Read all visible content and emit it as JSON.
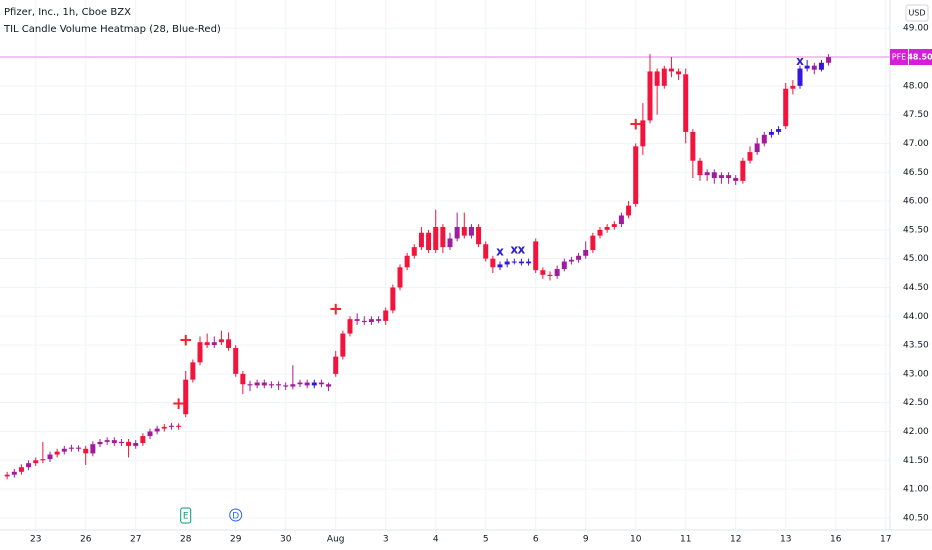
{
  "chart_data": {
    "type": "candlestick",
    "title": "Pfizer, Inc., 1h, Cboe BZX",
    "subtitle": "TIL Candle Volume Heatmap (28, Blue-Red)",
    "currency": "USD",
    "open": [
      41.22,
      41.25,
      41.3,
      41.38,
      41.45,
      41.5,
      41.52,
      41.6,
      41.65,
      41.7,
      41.72,
      41.7,
      41.62,
      41.78,
      41.82,
      41.85,
      41.8,
      41.82,
      41.75,
      41.8,
      41.92,
      42.0,
      42.05,
      42.08,
      42.1,
      42.3,
      42.9,
      43.2,
      43.55,
      43.5,
      43.55,
      43.6,
      43.45,
      43.0,
      42.82,
      42.8,
      42.85,
      42.8,
      42.82,
      42.8,
      42.78,
      42.82,
      42.85,
      42.8,
      42.85,
      42.82,
      43.0,
      43.3,
      43.7,
      43.95,
      43.92,
      43.9,
      43.95,
      43.92,
      44.1,
      44.5,
      44.85,
      45.05,
      45.2,
      45.45,
      45.15,
      45.55,
      45.2,
      45.35,
      45.55,
      45.4,
      45.55,
      45.25,
      45.0,
      44.85,
      44.9,
      44.95,
      44.95,
      44.92,
      45.3,
      44.8,
      44.72,
      44.7,
      44.82,
      44.95,
      44.98,
      45.05,
      45.15,
      45.4,
      45.5,
      45.55,
      45.6,
      45.75,
      45.95,
      46.95,
      47.4,
      48.25,
      48.0,
      48.3,
      48.25,
      48.2,
      47.2,
      46.7,
      46.45,
      46.5,
      46.4,
      46.45,
      46.4,
      46.35,
      46.7,
      46.85,
      47.0,
      47.15,
      47.2,
      47.3,
      47.95,
      48.0,
      48.3,
      48.35,
      48.28,
      48.4
    ],
    "high": [
      41.3,
      41.35,
      41.43,
      41.5,
      41.55,
      41.82,
      41.65,
      41.7,
      41.75,
      41.77,
      41.76,
      41.75,
      41.83,
      41.87,
      41.9,
      41.9,
      41.87,
      41.87,
      41.85,
      41.97,
      42.05,
      42.1,
      42.13,
      42.15,
      42.14,
      43.05,
      43.25,
      43.65,
      43.7,
      43.65,
      43.75,
      43.72,
      43.5,
      43.05,
      42.88,
      42.9,
      42.9,
      42.87,
      42.87,
      42.85,
      43.15,
      42.9,
      42.9,
      42.9,
      42.9,
      42.85,
      43.4,
      43.75,
      44.0,
      44.05,
      44.0,
      44.0,
      44.0,
      44.15,
      44.55,
      44.9,
      45.1,
      45.25,
      45.55,
      45.5,
      45.85,
      45.6,
      45.45,
      45.8,
      45.8,
      45.6,
      45.6,
      45.3,
      45.05,
      44.95,
      45.0,
      45.0,
      45.0,
      45.0,
      45.35,
      44.85,
      44.78,
      44.88,
      45.0,
      45.03,
      45.1,
      45.3,
      45.45,
      45.55,
      45.6,
      45.65,
      45.8,
      46.0,
      47.0,
      47.7,
      48.55,
      48.3,
      48.35,
      48.5,
      48.3,
      48.3,
      47.25,
      46.75,
      46.55,
      46.55,
      46.5,
      46.5,
      46.45,
      46.75,
      46.95,
      47.1,
      47.2,
      47.25,
      47.3,
      48.05,
      48.1,
      48.35,
      48.45,
      48.4,
      48.45,
      48.55
    ],
    "low": [
      41.17,
      41.2,
      41.25,
      41.33,
      41.4,
      41.45,
      41.47,
      41.55,
      41.6,
      41.65,
      41.65,
      41.42,
      41.57,
      41.73,
      41.77,
      41.75,
      41.75,
      41.55,
      41.7,
      41.75,
      41.87,
      41.95,
      42.0,
      42.03,
      42.03,
      42.25,
      42.85,
      43.15,
      43.45,
      43.45,
      43.5,
      43.4,
      42.95,
      42.65,
      42.7,
      42.75,
      42.75,
      42.75,
      42.72,
      42.72,
      42.73,
      42.77,
      42.75,
      42.75,
      42.77,
      42.7,
      42.95,
      43.25,
      43.65,
      43.85,
      43.85,
      43.85,
      43.88,
      43.85,
      44.05,
      44.45,
      44.8,
      45.0,
      45.15,
      45.1,
      45.1,
      45.1,
      45.15,
      45.3,
      45.35,
      45.35,
      45.2,
      44.95,
      44.75,
      44.8,
      44.85,
      44.9,
      44.88,
      44.88,
      44.75,
      44.65,
      44.62,
      44.65,
      44.78,
      44.9,
      44.93,
      45.0,
      45.1,
      45.35,
      45.45,
      45.5,
      45.55,
      45.7,
      45.9,
      46.8,
      47.35,
      47.5,
      47.95,
      48.15,
      48.1,
      47.0,
      46.4,
      46.35,
      46.35,
      46.3,
      46.3,
      46.3,
      46.28,
      46.3,
      46.65,
      46.8,
      46.95,
      47.1,
      47.15,
      47.25,
      47.85,
      47.95,
      48.25,
      48.2,
      48.25,
      48.35
    ],
    "close": [
      41.25,
      41.3,
      41.38,
      41.45,
      41.5,
      41.52,
      41.6,
      41.65,
      41.7,
      41.72,
      41.7,
      41.62,
      41.78,
      41.82,
      41.85,
      41.8,
      41.82,
      41.75,
      41.8,
      41.92,
      42.0,
      42.05,
      42.08,
      42.1,
      42.08,
      42.9,
      43.2,
      43.55,
      43.5,
      43.55,
      43.6,
      43.45,
      43.0,
      42.82,
      42.8,
      42.85,
      42.8,
      42.82,
      42.8,
      42.78,
      42.82,
      42.85,
      42.8,
      42.85,
      42.82,
      42.78,
      43.3,
      43.7,
      43.95,
      43.92,
      43.9,
      43.95,
      43.92,
      44.1,
      44.5,
      44.85,
      45.05,
      45.2,
      45.45,
      45.15,
      45.55,
      45.2,
      45.35,
      45.55,
      45.4,
      45.55,
      45.25,
      45.0,
      44.85,
      44.9,
      44.95,
      44.95,
      44.92,
      44.95,
      44.8,
      44.72,
      44.7,
      44.82,
      44.95,
      44.98,
      45.05,
      45.15,
      45.4,
      45.5,
      45.55,
      45.6,
      45.75,
      45.92,
      46.95,
      47.4,
      48.25,
      48.0,
      48.3,
      48.25,
      48.2,
      47.2,
      46.7,
      46.45,
      46.5,
      46.4,
      46.45,
      46.4,
      46.35,
      46.7,
      46.85,
      47.0,
      47.15,
      47.2,
      47.25,
      47.95,
      48.0,
      48.3,
      48.35,
      48.28,
      48.4,
      48.5
    ],
    "palette": [
      "#3416e0",
      "#a11c9c",
      "#f2143c"
    ],
    "heat": [
      2,
      1,
      2,
      1,
      2,
      2,
      1,
      2,
      1,
      1,
      1,
      2,
      1,
      1,
      1,
      1,
      1,
      2,
      1,
      2,
      1,
      1,
      2,
      1,
      2,
      2,
      2,
      2,
      2,
      1,
      2,
      2,
      2,
      2,
      1,
      1,
      1,
      1,
      1,
      1,
      1,
      1,
      1,
      0,
      1,
      1,
      2,
      2,
      2,
      1,
      1,
      1,
      1,
      2,
      2,
      2,
      2,
      2,
      2,
      2,
      2,
      2,
      1,
      1,
      2,
      1,
      2,
      2,
      2,
      0,
      0,
      0,
      0,
      0,
      2,
      2,
      2,
      1,
      1,
      1,
      1,
      1,
      2,
      2,
      2,
      2,
      1,
      2,
      2,
      2,
      2,
      2,
      2,
      2,
      2,
      2,
      2,
      2,
      1,
      1,
      1,
      1,
      1,
      2,
      2,
      1,
      1,
      0,
      0,
      2,
      2,
      0,
      0,
      1,
      0,
      1
    ],
    "xlim": [
      -1,
      123.6
    ],
    "xticks": [
      {
        "value": 4,
        "label": "23"
      },
      {
        "value": 11,
        "label": "26"
      },
      {
        "value": 18,
        "label": "27"
      },
      {
        "value": 25,
        "label": "28"
      },
      {
        "value": 32,
        "label": "29"
      },
      {
        "value": 39,
        "label": "30"
      },
      {
        "value": 46,
        "label": "Aug"
      },
      {
        "value": 53,
        "label": "3"
      },
      {
        "value": 60,
        "label": "4"
      },
      {
        "value": 67,
        "label": "5"
      },
      {
        "value": 74,
        "label": "6"
      },
      {
        "value": 81,
        "label": "9"
      },
      {
        "value": 88,
        "label": "10"
      },
      {
        "value": 95,
        "label": "11"
      },
      {
        "value": 102,
        "label": "12"
      },
      {
        "value": 109,
        "label": "13"
      },
      {
        "value": 116,
        "label": "16"
      },
      {
        "value": 123,
        "label": "17"
      }
    ],
    "ylim": [
      40.29,
      49.49
    ],
    "yticks": [
      {
        "value": 40.5,
        "label": "40.50"
      },
      {
        "value": 41,
        "label": "41.00"
      },
      {
        "value": 41.5,
        "label": "41.50"
      },
      {
        "value": 42,
        "label": "42.00"
      },
      {
        "value": 42.5,
        "label": "42.50"
      },
      {
        "value": 43,
        "label": "43.00"
      },
      {
        "value": 43.5,
        "label": "43.50"
      },
      {
        "value": 44,
        "label": "44.00"
      },
      {
        "value": 44.5,
        "label": "44.50"
      },
      {
        "value": 45,
        "label": "45.00"
      },
      {
        "value": 45.5,
        "label": "45.50"
      },
      {
        "value": 46,
        "label": "46.00"
      },
      {
        "value": 46.5,
        "label": "46.50"
      },
      {
        "value": 47,
        "label": "47.00"
      },
      {
        "value": 47.5,
        "label": "47.50"
      },
      {
        "value": 48,
        "label": "48.00"
      },
      {
        "value": 48.5,
        "label": "48.50"
      },
      {
        "value": 49,
        "label": "49.00"
      }
    ],
    "grid": true,
    "last_price": {
      "symbol": "PFE",
      "value": 48.5,
      "label": "48.50",
      "color": "#d61ed9"
    },
    "markers": [
      {
        "index": 24,
        "price": 42.48,
        "symbol": "+",
        "color": "#f7212b"
      },
      {
        "index": 25,
        "price": 43.58,
        "symbol": "+",
        "color": "#f7212b"
      },
      {
        "index": 46,
        "price": 44.12,
        "symbol": "+",
        "color": "#f7212b"
      },
      {
        "index": 88,
        "price": 47.33,
        "symbol": "+",
        "color": "#f7212b"
      },
      {
        "index": 69,
        "price": 45.12,
        "symbol": "x",
        "color": "#2a20c8"
      },
      {
        "index": 71,
        "price": 45.15,
        "symbol": "x",
        "color": "#2a20c8"
      },
      {
        "index": 72,
        "price": 45.15,
        "symbol": "x",
        "color": "#2a20c8"
      },
      {
        "index": 111,
        "price": 48.42,
        "symbol": "x",
        "color": "#2a20c8"
      }
    ],
    "events": [
      {
        "index": 25,
        "label": "E",
        "color": "#089981"
      },
      {
        "index": 32,
        "label": "D",
        "color": "#2962ff"
      }
    ]
  }
}
